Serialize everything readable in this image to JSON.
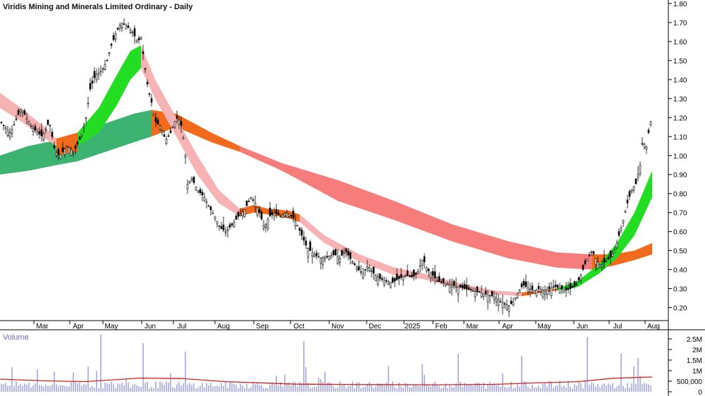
{
  "chart_data": {
    "type": "line",
    "title": "Viridis Mining and Minerals Limited Ordinary - Daily",
    "price_axis": {
      "ticks": [
        "1.80",
        "1.70",
        "1.60",
        "1.50",
        "1.40",
        "1.30",
        "1.20",
        "1.10",
        "1.00",
        "0.90",
        "0.80",
        "0.70",
        "0.60",
        "0.50",
        "0.40",
        "0.30",
        "0.20"
      ],
      "min": 0.15,
      "max": 1.8
    },
    "x_axis": {
      "labels": [
        "Mar",
        "Apr",
        "May",
        "Jun",
        "Jul",
        "Aug",
        "Sep",
        "Oct",
        "Nov",
        "Dec",
        "2025",
        "Feb",
        "Mar",
        "Apr",
        "May",
        "Jun",
        "Jul",
        "Aug"
      ]
    },
    "volume_panel": {
      "title": "Volume",
      "ticks": [
        "2.5M",
        "2M",
        "1.5M",
        "1M",
        "500,000",
        "0"
      ],
      "max": 2800000
    },
    "colors": {
      "bull_ribbon_short": "#22dd22",
      "bull_ribbon_long": "#3cb371",
      "bear_ribbon_short": "#f7b3b3",
      "bear_ribbon_long": "#f77c7c",
      "transition": "#f26a1b",
      "candle": "#000000",
      "volume_bar": "#9a9ad8",
      "volume_ma": "#d42020"
    },
    "price_series": {
      "name": "",
      "close_path": [
        [
          0,
          1.18
        ],
        [
          15,
          1.12
        ],
        [
          30,
          1.25
        ],
        [
          45,
          1.15
        ],
        [
          60,
          1.1
        ],
        [
          70,
          1.18
        ],
        [
          78,
          1.02
        ],
        [
          85,
          1.0
        ],
        [
          95,
          1.05
        ],
        [
          105,
          1.02
        ],
        [
          115,
          1.1
        ],
        [
          122,
          1.2
        ],
        [
          128,
          1.35
        ],
        [
          135,
          1.42
        ],
        [
          145,
          1.45
        ],
        [
          152,
          1.5
        ],
        [
          158,
          1.58
        ],
        [
          165,
          1.65
        ],
        [
          172,
          1.7
        ],
        [
          180,
          1.68
        ],
        [
          188,
          1.65
        ],
        [
          195,
          1.6
        ],
        [
          200,
          1.62
        ],
        [
          205,
          1.48
        ],
        [
          210,
          1.35
        ],
        [
          215,
          1.28
        ],
        [
          220,
          1.18
        ],
        [
          228,
          1.15
        ],
        [
          235,
          1.08
        ],
        [
          242,
          1.12
        ],
        [
          250,
          1.2
        ],
        [
          256,
          1.18
        ],
        [
          262,
          1.05
        ],
        [
          266,
          0.85
        ],
        [
          272,
          0.88
        ],
        [
          280,
          0.82
        ],
        [
          290,
          0.78
        ],
        [
          298,
          0.72
        ],
        [
          305,
          0.68
        ],
        [
          312,
          0.62
        ],
        [
          320,
          0.6
        ],
        [
          328,
          0.63
        ],
        [
          338,
          0.68
        ],
        [
          348,
          0.72
        ],
        [
          356,
          0.78
        ],
        [
          362,
          0.75
        ],
        [
          368,
          0.7
        ],
        [
          375,
          0.62
        ],
        [
          382,
          0.68
        ],
        [
          390,
          0.7
        ],
        [
          398,
          0.68
        ],
        [
          405,
          0.7
        ],
        [
          412,
          0.69
        ],
        [
          420,
          0.65
        ],
        [
          428,
          0.58
        ],
        [
          435,
          0.52
        ],
        [
          445,
          0.48
        ],
        [
          455,
          0.46
        ],
        [
          465,
          0.47
        ],
        [
          475,
          0.48
        ],
        [
          482,
          0.46
        ],
        [
          490,
          0.5
        ],
        [
          498,
          0.45
        ],
        [
          508,
          0.4
        ],
        [
          515,
          0.38
        ],
        [
          522,
          0.42
        ],
        [
          530,
          0.38
        ],
        [
          540,
          0.35
        ],
        [
          548,
          0.34
        ],
        [
          556,
          0.33
        ],
        [
          565,
          0.35
        ],
        [
          575,
          0.37
        ],
        [
          585,
          0.36
        ],
        [
          592,
          0.38
        ],
        [
          600,
          0.46
        ],
        [
          606,
          0.4
        ],
        [
          612,
          0.38
        ],
        [
          620,
          0.34
        ],
        [
          630,
          0.33
        ],
        [
          640,
          0.32
        ],
        [
          650,
          0.31
        ],
        [
          660,
          0.3
        ],
        [
          670,
          0.29
        ],
        [
          680,
          0.28
        ],
        [
          690,
          0.27
        ],
        [
          700,
          0.26
        ],
        [
          708,
          0.24
        ],
        [
          715,
          0.22
        ],
        [
          722,
          0.21
        ],
        [
          728,
          0.23
        ],
        [
          735,
          0.28
        ],
        [
          742,
          0.32
        ],
        [
          750,
          0.3
        ],
        [
          758,
          0.29
        ],
        [
          765,
          0.3
        ],
        [
          772,
          0.29
        ],
        [
          780,
          0.3
        ],
        [
          788,
          0.31
        ],
        [
          795,
          0.3
        ],
        [
          802,
          0.29
        ],
        [
          810,
          0.3
        ],
        [
          818,
          0.32
        ],
        [
          825,
          0.38
        ],
        [
          832,
          0.45
        ],
        [
          840,
          0.5
        ],
        [
          846,
          0.45
        ],
        [
          852,
          0.42
        ],
        [
          858,
          0.44
        ],
        [
          865,
          0.46
        ],
        [
          872,
          0.5
        ],
        [
          878,
          0.58
        ],
        [
          884,
          0.66
        ],
        [
          890,
          0.75
        ],
        [
          896,
          0.82
        ],
        [
          902,
          0.85
        ],
        [
          908,
          0.95
        ],
        [
          912,
          1.1
        ],
        [
          916,
          1.02
        ],
        [
          920,
          1.12
        ],
        [
          924,
          1.2
        ]
      ]
    }
  }
}
